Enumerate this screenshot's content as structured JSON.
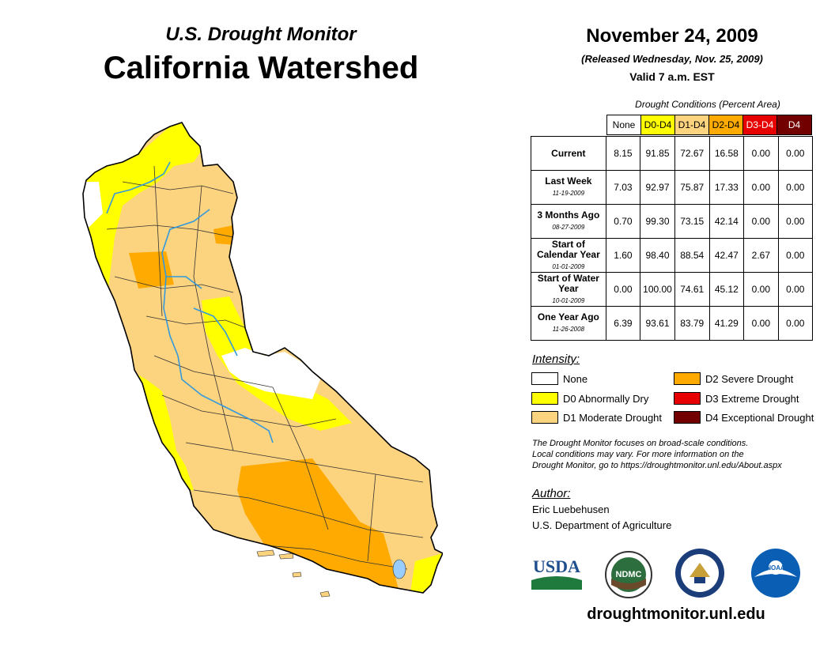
{
  "header": {
    "subtitle": "U.S. Drought Monitor",
    "title": "California Watershed",
    "date": "November 24, 2009",
    "released": "(Released Wednesday, Nov. 25, 2009)",
    "valid": "Valid 7 a.m. EST"
  },
  "table": {
    "caption": "Drought Conditions (Percent Area)",
    "columns": [
      "None",
      "D0-D4",
      "D1-D4",
      "D2-D4",
      "D3-D4",
      "D4"
    ],
    "rows": [
      {
        "label": "Current",
        "date": "",
        "values": [
          "8.15",
          "91.85",
          "72.67",
          "16.58",
          "0.00",
          "0.00"
        ]
      },
      {
        "label": "Last Week",
        "date": "11-19-2009",
        "values": [
          "7.03",
          "92.97",
          "75.87",
          "17.33",
          "0.00",
          "0.00"
        ]
      },
      {
        "label": "3 Months Ago",
        "date": "08-27-2009",
        "values": [
          "0.70",
          "99.30",
          "73.15",
          "42.14",
          "0.00",
          "0.00"
        ]
      },
      {
        "label": "Start of Calendar Year",
        "date": "01-01-2009",
        "values": [
          "1.60",
          "98.40",
          "88.54",
          "42.47",
          "2.67",
          "0.00"
        ]
      },
      {
        "label": "Start of Water Year",
        "date": "10-01-2009",
        "values": [
          "0.00",
          "100.00",
          "74.61",
          "45.12",
          "0.00",
          "0.00"
        ]
      },
      {
        "label": "One Year Ago",
        "date": "11-26-2008",
        "values": [
          "6.39",
          "93.61",
          "83.79",
          "41.29",
          "0.00",
          "0.00"
        ]
      }
    ]
  },
  "legend": {
    "title": "Intensity:",
    "items": [
      {
        "label": "None",
        "color": "#ffffff"
      },
      {
        "label": "D0 Abnormally Dry",
        "color": "#ffff00"
      },
      {
        "label": "D1 Moderate Drought",
        "color": "#fcd37f"
      },
      {
        "label": "D2 Severe Drought",
        "color": "#ffaa00"
      },
      {
        "label": "D3 Extreme Drought",
        "color": "#e60000"
      },
      {
        "label": "D4 Exceptional Drought",
        "color": "#730000"
      }
    ]
  },
  "note": {
    "line1": "The Drought Monitor focuses on broad-scale conditions.",
    "line2": "Local conditions may vary. For more information on the",
    "line3": "Drought Monitor, go to https://droughtmonitor.unl.edu/About.aspx"
  },
  "author": {
    "title": "Author:",
    "name": "Eric Luebehusen",
    "org": "U.S. Department of Agriculture"
  },
  "logos": {
    "usda": "USDA",
    "ndmc": "NDMC",
    "noaa": "NOAA"
  },
  "site": "droughtmonitor.unl.edu",
  "colors": {
    "river": "#3399dd",
    "d0": "#ffff00",
    "d1": "#fcd37f",
    "d2": "#ffaa00",
    "d3": "#e60000",
    "d4": "#730000",
    "none": "#ffffff"
  }
}
